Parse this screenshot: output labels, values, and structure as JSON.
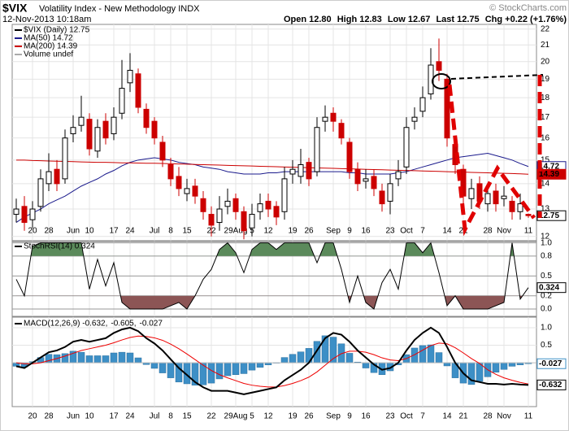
{
  "header": {
    "symbol": "$VIX",
    "name": "Volatility Index - New Methodology INDX",
    "date": "12-Nov-2013 10:18am",
    "quote": [
      "Open 12.80",
      "High 12.83",
      "Low 12.67",
      "Last 12.75",
      "Chg +0.22 (+1.76%)"
    ],
    "source": "© StockCharts.com"
  },
  "chart_data": [
    {
      "type": "candlestick",
      "name": "$VIX (Daily) 12.75",
      "volume_label": "Volume undef",
      "categories": [
        null,
        null,
        "20",
        null,
        "28",
        null,
        null,
        "Jun",
        null,
        "10",
        null,
        null,
        "17",
        null,
        "24",
        null,
        null,
        "Jul",
        null,
        "8",
        null,
        "15",
        null,
        null,
        "22",
        null,
        null,
        "29Aug",
        null,
        "5",
        null,
        "12",
        null,
        null,
        "19",
        null,
        "26",
        null,
        null,
        "Sep",
        null,
        "9",
        null,
        "16",
        null,
        null,
        "23",
        null,
        "Oct",
        null,
        "7",
        null,
        null,
        "14",
        null,
        "21",
        null,
        null,
        "28",
        null,
        "Nov",
        null,
        null,
        "11"
      ],
      "open": [
        12.8,
        13.1,
        12.6,
        13.1,
        14.0,
        14.6,
        14.2,
        16.2,
        16.6,
        16.9,
        15.4,
        16.8,
        16.2,
        17.2,
        18.8,
        19.3,
        17.4,
        16.8,
        15.8,
        14.8,
        14.3,
        13.6,
        13.9,
        13.4,
        12.8,
        12.5,
        13.1,
        13.4,
        12.9,
        12.3,
        12.9,
        13.3,
        13.1,
        12.9,
        14.4,
        14.3,
        14.9,
        14.5,
        16.8,
        17.2,
        16.7,
        15.8,
        14.6,
        14.1,
        14.3,
        13.7,
        13.3,
        14.2,
        14.7,
        16.8,
        17.3,
        18.2,
        20.0,
        19.0,
        15.7,
        14.6,
        13.4,
        14.0,
        13.2,
        13.7,
        13.4,
        13.3,
        12.9,
        12.8
      ],
      "high": [
        13.4,
        13.5,
        13.3,
        14.6,
        15.3,
        15.0,
        16.4,
        17.1,
        18.1,
        17.2,
        16.9,
        17.2,
        17.5,
        20.1,
        20.5,
        19.6,
        17.7,
        17.0,
        16.1,
        15.1,
        14.7,
        14.2,
        14.2,
        13.7,
        13.1,
        13.5,
        13.8,
        13.6,
        13.1,
        13.2,
        13.6,
        13.6,
        13.3,
        14.7,
        15.0,
        15.5,
        15.1,
        17.0,
        17.6,
        17.5,
        16.9,
        16.0,
        14.9,
        14.6,
        14.6,
        14.0,
        14.4,
        15.0,
        17.0,
        17.5,
        18.6,
        20.8,
        21.4,
        19.3,
        16.0,
        14.8,
        14.2,
        14.3,
        14.0,
        14.0,
        13.9,
        13.5,
        13.6,
        12.83
      ],
      "low": [
        12.5,
        12.2,
        12.3,
        12.9,
        13.7,
        13.7,
        14.0,
        15.8,
        16.3,
        15.2,
        15.1,
        15.7,
        15.9,
        16.9,
        18.3,
        17.2,
        16.2,
        15.7,
        14.7,
        13.9,
        13.5,
        13.3,
        13.2,
        12.6,
        12.0,
        12.2,
        12.8,
        12.6,
        11.9,
        12.0,
        12.6,
        12.7,
        12.4,
        12.6,
        14.0,
        14.0,
        13.9,
        14.3,
        16.3,
        16.3,
        15.7,
        14.2,
        13.7,
        13.8,
        13.5,
        12.9,
        12.8,
        13.9,
        14.4,
        16.4,
        17.0,
        17.9,
        18.9,
        15.6,
        14.4,
        13.1,
        13.0,
        13.0,
        12.9,
        12.9,
        13.1,
        12.6,
        12.6,
        12.67
      ],
      "close": [
        13.0,
        12.5,
        13.0,
        14.2,
        14.5,
        14.0,
        16.0,
        16.5,
        17.0,
        15.5,
        16.5,
        16.0,
        17.0,
        18.5,
        19.5,
        17.5,
        16.5,
        16.0,
        15.0,
        14.2,
        13.8,
        13.8,
        13.5,
        12.9,
        12.4,
        13.0,
        13.3,
        12.9,
        12.2,
        12.8,
        13.2,
        13.0,
        12.7,
        14.2,
        14.6,
        14.8,
        14.2,
        16.5,
        17.0,
        16.8,
        16.0,
        14.5,
        14.0,
        14.2,
        13.8,
        13.2,
        14.0,
        14.5,
        16.5,
        17.0,
        18.0,
        19.8,
        19.5,
        16.0,
        14.8,
        13.5,
        13.8,
        13.3,
        13.6,
        13.2,
        13.5,
        12.9,
        13.2,
        12.75
      ],
      "up_color": "#000000",
      "down_color": "#cc0000",
      "series": [
        {
          "name": "MA(50) 14.72",
          "color": "#1a1a8c",
          "values": [
            12.5,
            12.7,
            12.85,
            13.0,
            13.2,
            13.35,
            13.5,
            13.7,
            13.9,
            14.05,
            14.2,
            14.4,
            14.55,
            14.75,
            14.9,
            15.0,
            15.05,
            15.1,
            15.05,
            15.0,
            14.9,
            14.85,
            14.8,
            14.7,
            14.65,
            14.6,
            14.5,
            14.45,
            14.4,
            14.4,
            14.4,
            14.45,
            14.45,
            14.5,
            14.5,
            14.5,
            14.5,
            14.5,
            14.5,
            14.5,
            14.5,
            14.45,
            14.45,
            14.4,
            14.4,
            14.4,
            14.4,
            14.45,
            14.5,
            14.6,
            14.7,
            14.8,
            14.9,
            15.0,
            15.1,
            15.15,
            15.2,
            15.25,
            15.3,
            15.2,
            15.1,
            15.0,
            14.85,
            14.72
          ]
        },
        {
          "name": "MA(200) 14.39",
          "color": "#cc0000",
          "values": [
            15.0,
            15.0,
            14.98,
            14.97,
            14.96,
            14.95,
            14.94,
            14.93,
            14.92,
            14.91,
            14.9,
            14.9,
            14.89,
            14.88,
            14.88,
            14.87,
            14.86,
            14.86,
            14.85,
            14.84,
            14.83,
            14.82,
            14.81,
            14.8,
            14.79,
            14.78,
            14.77,
            14.76,
            14.75,
            14.74,
            14.73,
            14.72,
            14.71,
            14.7,
            14.69,
            14.68,
            14.67,
            14.66,
            14.65,
            14.64,
            14.63,
            14.62,
            14.61,
            14.6,
            14.59,
            14.58,
            14.57,
            14.56,
            14.55,
            14.54,
            14.53,
            14.52,
            14.51,
            14.5,
            14.49,
            14.48,
            14.47,
            14.46,
            14.45,
            14.44,
            14.43,
            14.42,
            14.41,
            14.39
          ]
        }
      ],
      "ylim": [
        11.85,
        22.3
      ],
      "yticks": [
        12,
        13,
        14,
        15,
        16,
        17,
        18,
        19,
        20,
        21,
        22
      ],
      "log": true,
      "grid": true
    },
    {
      "type": "line",
      "name": "StochRSI(14) 0.324",
      "color": "#000000",
      "overbought_color": "#5b8a5b",
      "oversold_color": "#8c5555",
      "values": [
        0.45,
        0.2,
        0.95,
        1,
        1,
        1,
        1,
        1,
        1,
        0.3,
        0.75,
        0.35,
        0.7,
        0.1,
        0,
        0,
        0,
        0,
        0,
        0.05,
        0.1,
        0,
        0.2,
        0.45,
        0.6,
        0.9,
        1,
        0.85,
        0.55,
        0.9,
        1,
        1,
        0.9,
        1,
        1,
        1,
        1,
        0.7,
        1,
        1,
        0.6,
        0.1,
        0.5,
        0.1,
        0,
        0.4,
        0.6,
        0.3,
        1,
        1,
        0.85,
        1,
        0.55,
        0.05,
        0.2,
        0,
        0,
        0,
        0,
        0.05,
        0.1,
        1,
        0.15,
        0.324
      ],
      "ylim": [
        -0.11,
        1.02
      ],
      "yticks": [
        {
          "value": 1,
          "label": "1.0"
        },
        0.8,
        0.5,
        0.2,
        {
          "value": 0,
          "label": "0.0"
        }
      ]
    },
    {
      "type": "macd",
      "series": [
        {
          "name": "MACD(12,26,9) -0.632,",
          "color": "#000000",
          "values": [
            -0.1,
            -0.15,
            0.0,
            0.15,
            0.3,
            0.35,
            0.45,
            0.6,
            0.65,
            0.6,
            0.65,
            0.7,
            0.85,
            0.95,
            1.0,
            0.9,
            0.7,
            0.55,
            0.35,
            0.1,
            -0.15,
            -0.35,
            -0.55,
            -0.7,
            -0.8,
            -0.8,
            -0.8,
            -0.85,
            -0.9,
            -0.85,
            -0.8,
            -0.75,
            -0.7,
            -0.5,
            -0.35,
            -0.2,
            0.0,
            0.35,
            0.7,
            0.85,
            0.8,
            0.6,
            0.35,
            0.15,
            -0.05,
            -0.2,
            -0.15,
            0.0,
            0.35,
            0.65,
            0.85,
            1.0,
            0.85,
            0.45,
            0.0,
            -0.3,
            -0.5,
            -0.55,
            -0.6,
            -0.6,
            -0.62,
            -0.6,
            -0.62,
            -0.632
          ]
        },
        {
          "name": "-0.605,",
          "color": "#ee0000",
          "values": [
            0.0,
            -0.03,
            -0.03,
            0.0,
            0.06,
            0.12,
            0.19,
            0.27,
            0.35,
            0.4,
            0.45,
            0.5,
            0.57,
            0.65,
            0.72,
            0.76,
            0.75,
            0.71,
            0.64,
            0.53,
            0.4,
            0.25,
            0.09,
            -0.07,
            -0.22,
            -0.34,
            -0.43,
            -0.51,
            -0.59,
            -0.64,
            -0.67,
            -0.69,
            -0.69,
            -0.65,
            -0.59,
            -0.51,
            -0.41,
            -0.26,
            -0.07,
            0.12,
            0.26,
            0.33,
            0.33,
            0.3,
            0.23,
            0.14,
            0.08,
            0.06,
            0.12,
            0.23,
            0.36,
            0.49,
            0.56,
            0.54,
            0.43,
            0.28,
            0.12,
            -0.02,
            -0.2,
            -0.33,
            -0.43,
            -0.5,
            -0.56,
            -0.605
          ]
        },
        {
          "name": "-0.027",
          "color": "#3d8fc6",
          "values": [
            -0.1,
            -0.12,
            0.03,
            0.15,
            0.24,
            0.23,
            0.26,
            0.33,
            0.3,
            0.2,
            0.2,
            0.2,
            0.28,
            0.3,
            0.28,
            0.14,
            -0.05,
            -0.16,
            -0.29,
            -0.43,
            -0.55,
            -0.6,
            -0.64,
            -0.63,
            -0.58,
            -0.46,
            -0.37,
            -0.34,
            -0.31,
            -0.21,
            -0.13,
            -0.06,
            -0.01,
            0.15,
            0.24,
            0.31,
            0.41,
            0.61,
            0.77,
            0.73,
            0.54,
            0.27,
            0.02,
            -0.15,
            -0.28,
            -0.34,
            -0.23,
            -0.06,
            0.23,
            0.42,
            0.49,
            0.51,
            0.29,
            -0.09,
            -0.43,
            -0.58,
            -0.62,
            -0.53,
            -0.4,
            -0.27,
            -0.19,
            -0.1,
            -0.06,
            -0.027
          ]
        }
      ],
      "ylim": [
        -1.25,
        1.3
      ],
      "yticks": [
        {
          "value": 1,
          "label": "1.0"
        },
        0.5
      ]
    }
  ]
}
